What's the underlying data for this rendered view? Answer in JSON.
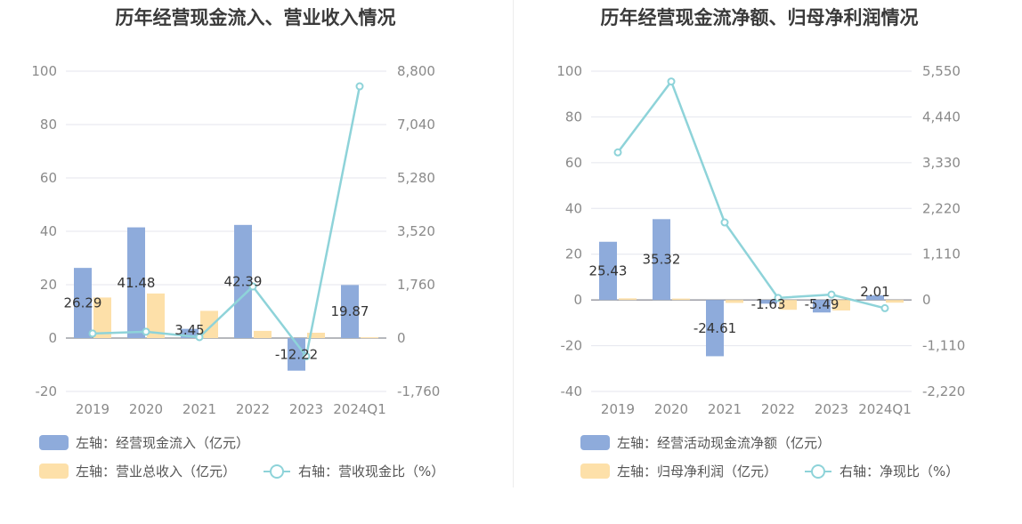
{
  "colors": {
    "bar_primary": "#8eabdb",
    "bar_secondary": "#fde0a9",
    "line": "#8ed3d9",
    "grid": "#e4e6ee",
    "axis": "#6e7079"
  },
  "chart_data": [
    {
      "type": "bar",
      "title": "历年经营现金流入、营业收入情况",
      "categories": [
        "2019",
        "2020",
        "2021",
        "2022",
        "2023",
        "2024Q1"
      ],
      "left_axis": {
        "ticks": [
          "100",
          "80",
          "60",
          "40",
          "20",
          "0",
          "-20"
        ],
        "ylim": [
          -20,
          100
        ]
      },
      "right_axis": {
        "ticks": [
          "8,800",
          "7,040",
          "5,280",
          "3,520",
          "1,760",
          "0",
          "-1,760"
        ],
        "ylim": [
          -1760,
          8800
        ]
      },
      "series": [
        {
          "name": "左轴：经营现金流入（亿元）",
          "axis": "left",
          "type": "bar",
          "color": "#8eabdb",
          "values": [
            26.29,
            41.48,
            3.45,
            42.39,
            -12.22,
            19.87
          ],
          "labels": [
            "26.29",
            "41.48",
            "3.45",
            "42.39",
            "-12.22",
            "19.87"
          ]
        },
        {
          "name": "左轴：营业总收入（亿元）",
          "axis": "left",
          "type": "bar",
          "color": "#fde0a9",
          "values": [
            15.2,
            16.7,
            10.2,
            2.7,
            2.0,
            0.3
          ]
        },
        {
          "name": "右轴：营收现金比（%）",
          "axis": "right",
          "type": "line",
          "color": "#8ed3d9",
          "values": [
            150,
            210,
            30,
            1700,
            -600,
            8300
          ]
        }
      ]
    },
    {
      "type": "bar",
      "title": "历年经营现金流净额、归母净利润情况",
      "categories": [
        "2019",
        "2020",
        "2021",
        "2022",
        "2023",
        "2024Q1"
      ],
      "left_axis": {
        "ticks": [
          "100",
          "80",
          "60",
          "40",
          "20",
          "0",
          "-20",
          "-40"
        ],
        "ylim": [
          -40,
          100
        ]
      },
      "right_axis": {
        "ticks": [
          "5,550",
          "4,440",
          "3,330",
          "2,220",
          "1,110",
          "0",
          "-1,110",
          "-2,220"
        ],
        "ylim": [
          -2220,
          5550
        ]
      },
      "series": [
        {
          "name": "左轴：经营活动现金流净额（亿元）",
          "axis": "left",
          "type": "bar",
          "color": "#8eabdb",
          "values": [
            25.43,
            35.32,
            -24.61,
            -1.63,
            -5.49,
            2.01
          ],
          "labels": [
            "25.43",
            "35.32",
            "-24.61",
            "-1.63",
            "-5.49",
            "2.01"
          ]
        },
        {
          "name": "左轴：归母净利润（亿元）",
          "axis": "left",
          "type": "bar",
          "color": "#fde0a9",
          "values": [
            0.7,
            0.6,
            -1.3,
            -4.3,
            -4.6,
            -1.2
          ]
        },
        {
          "name": "右轴：净现比（%）",
          "axis": "right",
          "type": "line",
          "color": "#8ed3d9",
          "values": [
            3580,
            5300,
            1880,
            50,
            130,
            -200
          ]
        }
      ]
    }
  ]
}
